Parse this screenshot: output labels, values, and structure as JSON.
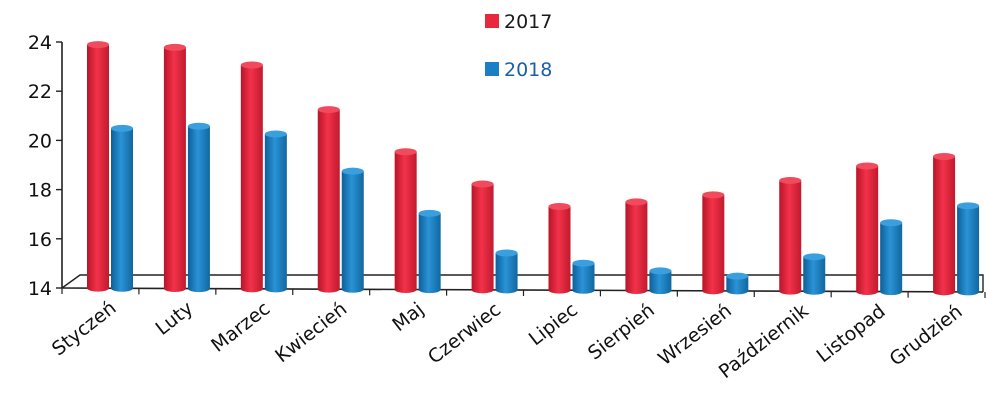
{
  "chart_data": {
    "type": "bar",
    "categories": [
      "Styczeń",
      "Luty",
      "Marzec",
      "Kwiecień",
      "Maj",
      "Czerwiec",
      "Lipiec",
      "Sierpień",
      "Wrzesień",
      "Październik",
      "Listopad",
      "Grudzień"
    ],
    "series": [
      {
        "name": "2017",
        "color": "#e8283c",
        "values": [
          23.9,
          23.8,
          23.1,
          21.3,
          19.6,
          18.3,
          17.4,
          17.6,
          17.9,
          18.5,
          19.1,
          19.5
        ]
      },
      {
        "name": "2018",
        "color": "#1a7fc4",
        "values": [
          20.5,
          20.6,
          20.3,
          18.8,
          17.1,
          15.5,
          15.1,
          14.8,
          14.6,
          15.4,
          16.8,
          17.5
        ]
      }
    ],
    "ylim": [
      14,
      24
    ],
    "yticks": [
      "14",
      "16",
      "18",
      "20",
      "22",
      "24"
    ],
    "legend": "top-center",
    "grid": false
  }
}
